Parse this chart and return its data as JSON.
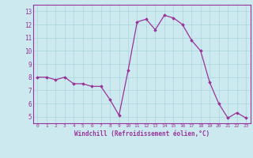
{
  "x": [
    0,
    1,
    2,
    3,
    4,
    5,
    6,
    7,
    8,
    9,
    10,
    11,
    12,
    13,
    14,
    15,
    16,
    17,
    18,
    19,
    20,
    21,
    22,
    23
  ],
  "y": [
    8.0,
    8.0,
    7.8,
    8.0,
    7.5,
    7.5,
    7.3,
    7.3,
    6.3,
    5.1,
    8.5,
    12.2,
    12.4,
    11.6,
    12.7,
    12.5,
    12.0,
    10.8,
    10.0,
    7.6,
    6.0,
    4.9,
    5.3,
    4.9
  ],
  "line_color": "#993399",
  "marker": "D",
  "marker_size": 1.8,
  "linewidth": 0.9,
  "bg_color": "#cce9f0",
  "grid_color": "#aad4dc",
  "xlabel": "Windchill (Refroidissement éolien,°C)",
  "ylabel_ticks": [
    5,
    6,
    7,
    8,
    9,
    10,
    11,
    12,
    13
  ],
  "xlim": [
    -0.5,
    23.5
  ],
  "ylim": [
    4.5,
    13.5
  ]
}
